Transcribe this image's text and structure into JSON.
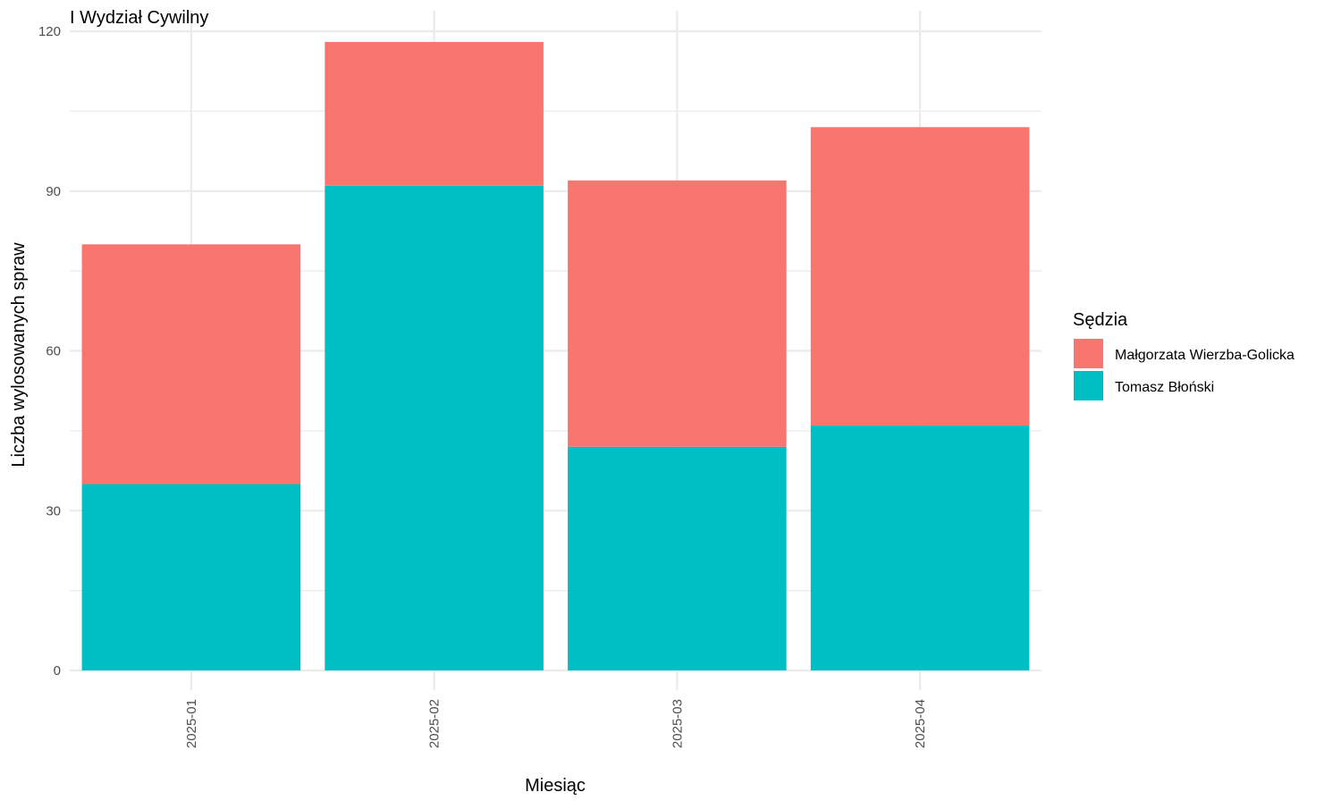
{
  "chart_data": {
    "type": "bar",
    "stacked": true,
    "title": "I Wydział Cywilny",
    "xlabel": "Miesiąc",
    "ylabel": "Liczba wylosowanych spraw",
    "categories": [
      "2025-01",
      "2025-02",
      "2025-03",
      "2025-04"
    ],
    "ylim": [
      0,
      120
    ],
    "yticks": [
      0,
      30,
      60,
      90,
      120
    ],
    "grid": true,
    "legend": {
      "title": "Sędzia",
      "placement": "right"
    },
    "series": [
      {
        "name": "Tomasz Błoński",
        "color": "#00BFC4",
        "values": [
          35,
          91,
          42,
          46
        ]
      },
      {
        "name": "Małgorzata Wierzba-Golicka",
        "color": "#F8766D",
        "values": [
          45,
          27,
          50,
          56
        ]
      }
    ],
    "legend_order": [
      "Małgorzata Wierzba-Golicka",
      "Tomasz Błoński"
    ]
  }
}
